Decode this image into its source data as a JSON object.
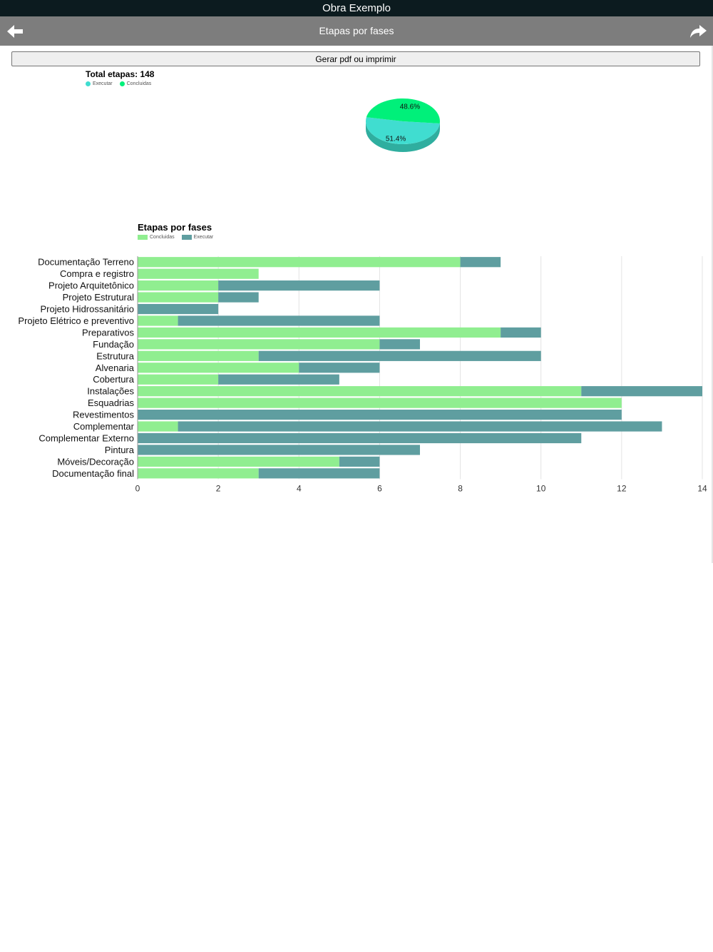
{
  "app": {
    "title": "Obra Exemplo"
  },
  "nav": {
    "title": "Etapas por fases",
    "back_icon": "arrow-left-icon",
    "forward_icon": "share-arrow-icon"
  },
  "actions": {
    "pdf_label": "Gerar pdf ou imprimir"
  },
  "colors": {
    "concluidas_pie": "#00f07a",
    "executar_pie": "#40ddd0",
    "concluidas_bar": "#90ee90",
    "executar_bar": "#5f9ea0"
  },
  "chart_data": [
    {
      "type": "pie",
      "title": "Total etapas: 148",
      "legend": [
        "Executar",
        "Concluidas"
      ],
      "slices": [
        {
          "name": "Executar",
          "value": 51.4,
          "label": "51.4%"
        },
        {
          "name": "Concluidas",
          "value": 48.6,
          "label": "48.6%"
        }
      ]
    },
    {
      "type": "bar",
      "orientation": "horizontal",
      "stacked": true,
      "title": "Etapas por fases",
      "legend": [
        "Concluidas",
        "Executar"
      ],
      "categories": [
        "Documentação Terreno",
        "Compra e registro",
        "Projeto Arquitetônico",
        "Projeto Estrutural",
        "Projeto Hidrossanitário",
        "Projeto Elétrico e preventivo",
        "Preparativos",
        "Fundação",
        "Estrutura",
        "Alvenaria",
        "Cobertura",
        "Instalações",
        "Esquadrias",
        "Revestimentos",
        "Complementar",
        "Complementar Externo",
        "Pintura",
        "Móveis/Decoração",
        "Documentação final"
      ],
      "series": [
        {
          "name": "Concluidas",
          "values": [
            8,
            3,
            2,
            2,
            0,
            1,
            9,
            6,
            3,
            4,
            2,
            11,
            12,
            0,
            1,
            0,
            0,
            5,
            3
          ]
        },
        {
          "name": "Executar",
          "values": [
            1,
            0,
            4,
            1,
            2,
            5,
            1,
            1,
            7,
            2,
            3,
            3,
            0,
            12,
            12,
            11,
            7,
            1,
            3
          ]
        }
      ],
      "xlim": [
        0,
        14
      ],
      "xticks": [
        "0",
        "2",
        "4",
        "6",
        "8",
        "10",
        "12",
        "14"
      ],
      "grid": true,
      "legend_position": "top-left"
    }
  ]
}
